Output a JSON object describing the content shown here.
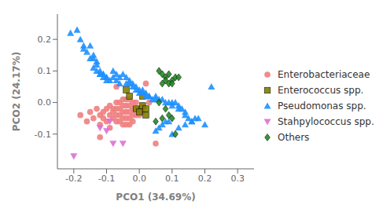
{
  "chart_data": {
    "type": "scatter",
    "xlabel": "PCO1 (34.69%)",
    "ylabel": "PCO2 (24.17%)",
    "xlim": [
      -0.25,
      0.35
    ],
    "ylim": [
      -0.21,
      0.28
    ],
    "xticks": [
      -0.2,
      -0.1,
      {
        "value": 0,
        "label": "0.0"
      },
      0.1,
      0.2,
      0.3
    ],
    "yticks": [
      -0.1,
      {
        "value": 0,
        "label": "0.0"
      },
      0.1,
      0.2
    ],
    "grid": false,
    "legend": "right",
    "series": [
      {
        "name": "Enterobacteriaceae",
        "color": "#F08080",
        "marker": "circle",
        "x": [
          -0.18,
          -0.16,
          -0.15,
          -0.14,
          -0.13,
          -0.12,
          -0.12,
          -0.11,
          -0.11,
          -0.1,
          -0.1,
          -0.09,
          -0.09,
          -0.09,
          -0.08,
          -0.08,
          -0.08,
          -0.07,
          -0.07,
          -0.07,
          -0.07,
          -0.06,
          -0.06,
          -0.06,
          -0.06,
          -0.05,
          -0.05,
          -0.05,
          -0.05,
          -0.05,
          -0.04,
          -0.04,
          -0.04,
          -0.04,
          -0.04,
          -0.03,
          -0.03,
          -0.03,
          -0.03,
          -0.03,
          -0.02,
          -0.02,
          -0.02,
          -0.02,
          -0.01,
          -0.01,
          -0.01,
          0.0,
          0.0,
          0.01,
          0.01,
          0.02,
          0.03,
          0.05,
          -0.12,
          -0.07
        ],
        "y": [
          -0.04,
          -0.06,
          -0.03,
          -0.05,
          -0.02,
          -0.04,
          -0.07,
          -0.03,
          -0.05,
          -0.02,
          -0.06,
          -0.01,
          -0.04,
          -0.08,
          -0.02,
          -0.03,
          -0.05,
          0.0,
          -0.02,
          -0.04,
          -0.06,
          0.0,
          -0.02,
          -0.04,
          -0.06,
          0.01,
          -0.01,
          -0.03,
          -0.05,
          -0.07,
          0.01,
          -0.01,
          -0.03,
          -0.05,
          -0.07,
          0.01,
          -0.01,
          -0.03,
          -0.05,
          -0.07,
          0.0,
          -0.02,
          -0.04,
          -0.06,
          0.0,
          -0.02,
          -0.04,
          -0.02,
          -0.04,
          -0.01,
          -0.03,
          0.06,
          0.0,
          -0.13,
          -0.11,
          0.05
        ]
      },
      {
        "name": "Enterococcus spp.",
        "color": "#808000",
        "marker": "square",
        "x": [
          -0.04,
          -0.03,
          -0.01,
          0.0,
          0.01,
          0.01,
          0.02,
          0.02
        ],
        "y": [
          0.04,
          0.02,
          -0.02,
          -0.03,
          0.02,
          -0.01,
          -0.02,
          -0.04
        ]
      },
      {
        "name": "Pseudomonas spp.",
        "color": "#1E90FF",
        "marker": "triangle",
        "x": [
          -0.21,
          -0.19,
          -0.18,
          -0.17,
          -0.17,
          -0.16,
          -0.15,
          -0.14,
          -0.14,
          -0.13,
          -0.13,
          -0.12,
          -0.12,
          -0.11,
          -0.11,
          -0.1,
          -0.1,
          -0.09,
          -0.08,
          -0.08,
          -0.07,
          -0.07,
          -0.06,
          -0.06,
          -0.05,
          -0.04,
          -0.04,
          -0.03,
          -0.03,
          -0.02,
          -0.02,
          -0.01,
          -0.01,
          0.0,
          0.0,
          0.01,
          0.01,
          0.02,
          0.02,
          0.03,
          0.03,
          0.04,
          0.05,
          0.05,
          0.06,
          0.07,
          0.08,
          0.09,
          0.1,
          0.1,
          0.11,
          0.12,
          0.12,
          0.13,
          0.14,
          0.14,
          0.15,
          0.16,
          0.17,
          0.18,
          0.2,
          0.22,
          -0.15,
          -0.14,
          -0.13,
          -0.12,
          -0.11,
          -0.1,
          0.05,
          0.06,
          0.07,
          0.08,
          0.09,
          0.1,
          0.12,
          0.14,
          0.16
        ],
        "y": [
          0.22,
          0.23,
          0.2,
          0.18,
          0.17,
          0.16,
          0.18,
          0.15,
          0.14,
          0.13,
          0.12,
          0.1,
          0.09,
          0.09,
          0.08,
          0.08,
          0.07,
          0.07,
          0.1,
          0.08,
          0.09,
          0.07,
          0.08,
          0.06,
          0.09,
          0.08,
          0.06,
          0.07,
          0.06,
          0.06,
          0.05,
          0.05,
          0.04,
          0.03,
          0.04,
          0.04,
          0.03,
          0.03,
          0.02,
          0.02,
          0.02,
          0.01,
          0.01,
          0.02,
          0.01,
          0.01,
          0.0,
          0.0,
          -0.01,
          0.0,
          0.0,
          -0.01,
          -0.02,
          -0.02,
          -0.03,
          -0.04,
          -0.05,
          -0.06,
          -0.05,
          -0.05,
          -0.07,
          0.05,
          0.14,
          0.11,
          0.1,
          0.09,
          0.09,
          0.08,
          -0.09,
          -0.08,
          -0.07,
          -0.06,
          -0.06,
          -0.1,
          -0.08,
          -0.07,
          -0.06
        ]
      },
      {
        "name": "Stahpylococcus spp.",
        "color": "#DA70D6",
        "marker": "triangle_down",
        "x": [
          -0.2,
          -0.12,
          -0.1,
          -0.09,
          -0.08,
          -0.05
        ],
        "y": [
          -0.17,
          -0.08,
          -0.09,
          -0.06,
          -0.13,
          -0.13
        ]
      },
      {
        "name": "Others",
        "color": "#228B22",
        "marker": "diamond",
        "x": [
          0.06,
          0.07,
          0.08,
          0.09,
          0.1,
          0.11,
          0.12,
          0.07,
          0.08,
          0.09,
          0.1,
          0.06,
          0.08,
          0.09,
          0.07,
          0.1,
          0.05,
          0.11
        ],
        "y": [
          0.1,
          0.09,
          0.08,
          0.09,
          0.07,
          0.08,
          0.08,
          0.06,
          0.07,
          0.06,
          0.06,
          0.0,
          -0.02,
          -0.04,
          -0.05,
          -0.05,
          -0.06,
          -0.1
        ]
      }
    ]
  }
}
